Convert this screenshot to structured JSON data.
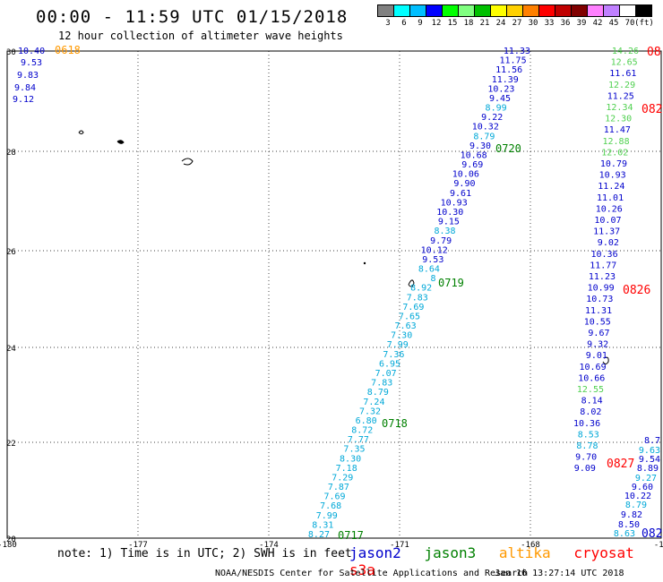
{
  "header": {
    "title": "00:00 - 11:59 UTC 01/15/2018",
    "subtitle": "12 hour collection of altimeter wave heights"
  },
  "legend": {
    "unit": "(ft)",
    "colors": [
      "#808080",
      "#00ffff",
      "#00bfff",
      "#0000ff",
      "#00ff00",
      "#80ff80",
      "#00c000",
      "#ffff00",
      "#ffd000",
      "#ff8000",
      "#ff0000",
      "#c00000",
      "#800000",
      "#ff80ff",
      "#c080ff",
      "#ffffff",
      "#000000"
    ],
    "labels": [
      "3",
      "6",
      "9",
      "12",
      "15",
      "18",
      "21",
      "24",
      "27",
      "30",
      "33",
      "36",
      "39",
      "42",
      "45",
      "70"
    ]
  },
  "axes": {
    "lon_labels": [
      "-180",
      "-177",
      "-174",
      "-171",
      "-168",
      "-16"
    ],
    "lat_labels": [
      "30",
      "28",
      "26",
      "24",
      "22",
      "20"
    ]
  },
  "satellite_colors": {
    "jason2": "#0000cc",
    "jason3": "#008000",
    "altika": "#ff9900",
    "cryosat": "#ff0000",
    "s3a": "#ff0000",
    "cyan": "#00a8d8",
    "lightgreen": "#50d050"
  },
  "tracks": [
    {
      "id": "0618",
      "label": "0618",
      "color": "#ff9900",
      "values": [
        "10.40",
        "9.53",
        "9.83",
        "9.84",
        "9.12"
      ]
    },
    {
      "id": "0717-0720",
      "labels": [
        "0717",
        "0718",
        "0719",
        "0720"
      ],
      "color": "#008000",
      "values": [
        "11.33",
        "11.75",
        "11.56",
        "11.39",
        "10.23",
        "9.45",
        "8.99",
        "9.22",
        "10.32",
        "8.79",
        "9.30",
        "10.68",
        "9.69",
        "10.06",
        "9.90",
        "9.61",
        "10.93",
        "10.30",
        "9.15",
        "8.38",
        "9.79",
        "10.12",
        "9.53",
        "8.64",
        "8",
        "8.92",
        "7.83",
        "7.69",
        "7.65",
        "7.63",
        "7.30",
        "7.99",
        "7.36",
        "6.95",
        "7.07",
        "7.83",
        "8.79",
        "7.24",
        "7.32",
        "6.80",
        "8.72",
        "7.77",
        "7.35",
        "8.30",
        "7.18",
        "7.29",
        "7.87",
        "7.69",
        "7.68",
        "7.99",
        "8.31",
        "8.27"
      ]
    },
    {
      "id": "08xx",
      "labels": [
        "08",
        "082",
        "0826",
        "0827",
        "082"
      ],
      "color": "#ff0000",
      "values": [
        "14.26",
        "12.65",
        "11.61",
        "12.29",
        "11.25",
        "12.34",
        "12.30",
        "11.47",
        "12.88",
        "12.02",
        "10.79",
        "10.93",
        "11.24",
        "11.01",
        "10.26",
        "10.07",
        "11.37",
        "9.02",
        "10.36",
        "11.77",
        "11.23",
        "10.99",
        "10.73",
        "11.31",
        "10.55",
        "9.67",
        "9.32",
        "9.01",
        "10.69",
        "10.66",
        "12.55",
        "8.14",
        "8.02",
        "10.36",
        "8.53",
        "8.78",
        "9.70",
        "9.09",
        "8.7",
        "9.63",
        "9.54",
        "8.89",
        "9.27",
        "9.60",
        "10.22",
        "8.79",
        "9.82",
        "8.50",
        "8.63"
      ]
    }
  ],
  "note": "note: 1) Time is in UTC; 2) SWH is in feet",
  "satellites": [
    "jason2",
    "jason3",
    "altika",
    "cryosat",
    "s3a"
  ],
  "footer": {
    "credit": "NOAA/NESDIS Center for Satellite Applications and Research",
    "timestamp": "Jan 16 13:27:14 UTC 2018"
  }
}
